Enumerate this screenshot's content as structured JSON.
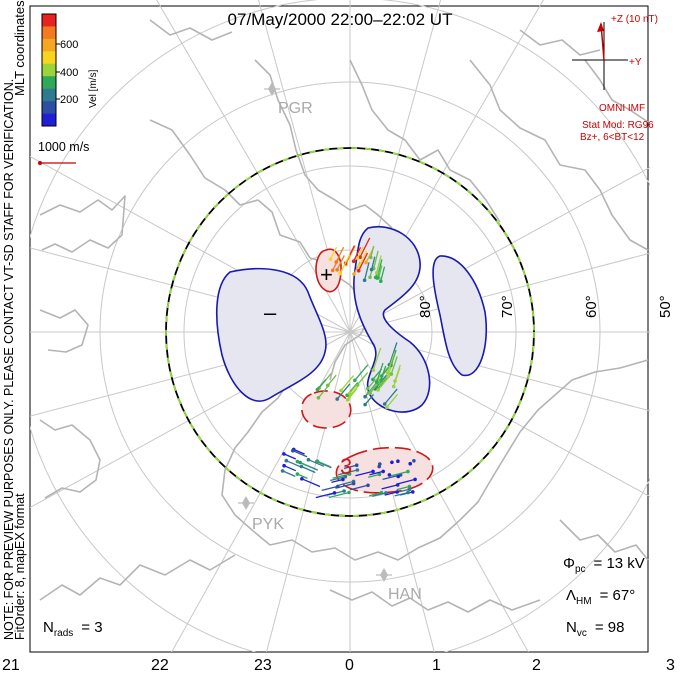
{
  "title": "07/May/2000 22:00–22:02 UT",
  "coord_label": "MLT coordinates",
  "note_line1": "NOTE: FOR PREVIEW PURPOSES ONLY. PLEASE CONTACT VT-SD STAFF FOR VERIFICATION.",
  "note_line2": "FitOrder: 8, mapEX format",
  "colorbar": {
    "label": "Vel [m/s]",
    "ticks": [
      "600",
      "400",
      "200"
    ],
    "colors": [
      "#e8231f",
      "#f47a20",
      "#f5a623",
      "#f7d51e",
      "#9bd33a",
      "#2fa85a",
      "#2e7a8f",
      "#2c4fa5",
      "#1f1fd4"
    ]
  },
  "vector_scale_label": "1000 m/s",
  "imf": {
    "z_label": "+Z (10 nT)",
    "y_label": "+Y",
    "source": "OMNI IMF",
    "stat_mod": "Stat Mod: RG96",
    "condition": "Bz+, 6<BT<12",
    "color": "#cc0000"
  },
  "stations": [
    "PGR",
    "PYK",
    "HAN"
  ],
  "lat_labels": [
    "80°",
    "70°",
    "60°",
    "50°"
  ],
  "mlt_labels": [
    "21",
    "22",
    "23",
    "0",
    "1",
    "2",
    "3"
  ],
  "contour_labels": {
    "plus": "+",
    "minus": "–",
    "three": "3"
  },
  "stats": {
    "phi_sym": "Φ",
    "phi_sub": "pc",
    "phi_value": "= 13 kV",
    "lambda_sym": "Λ",
    "lambda_sub": "HM",
    "lambda_value": "= 67°",
    "nvc_sym": "N",
    "nvc_sub": "vc",
    "nvc_value": "= 98",
    "nrads_sym": "N",
    "nrads_sub": "rads",
    "nrads_value": "= 3"
  }
}
